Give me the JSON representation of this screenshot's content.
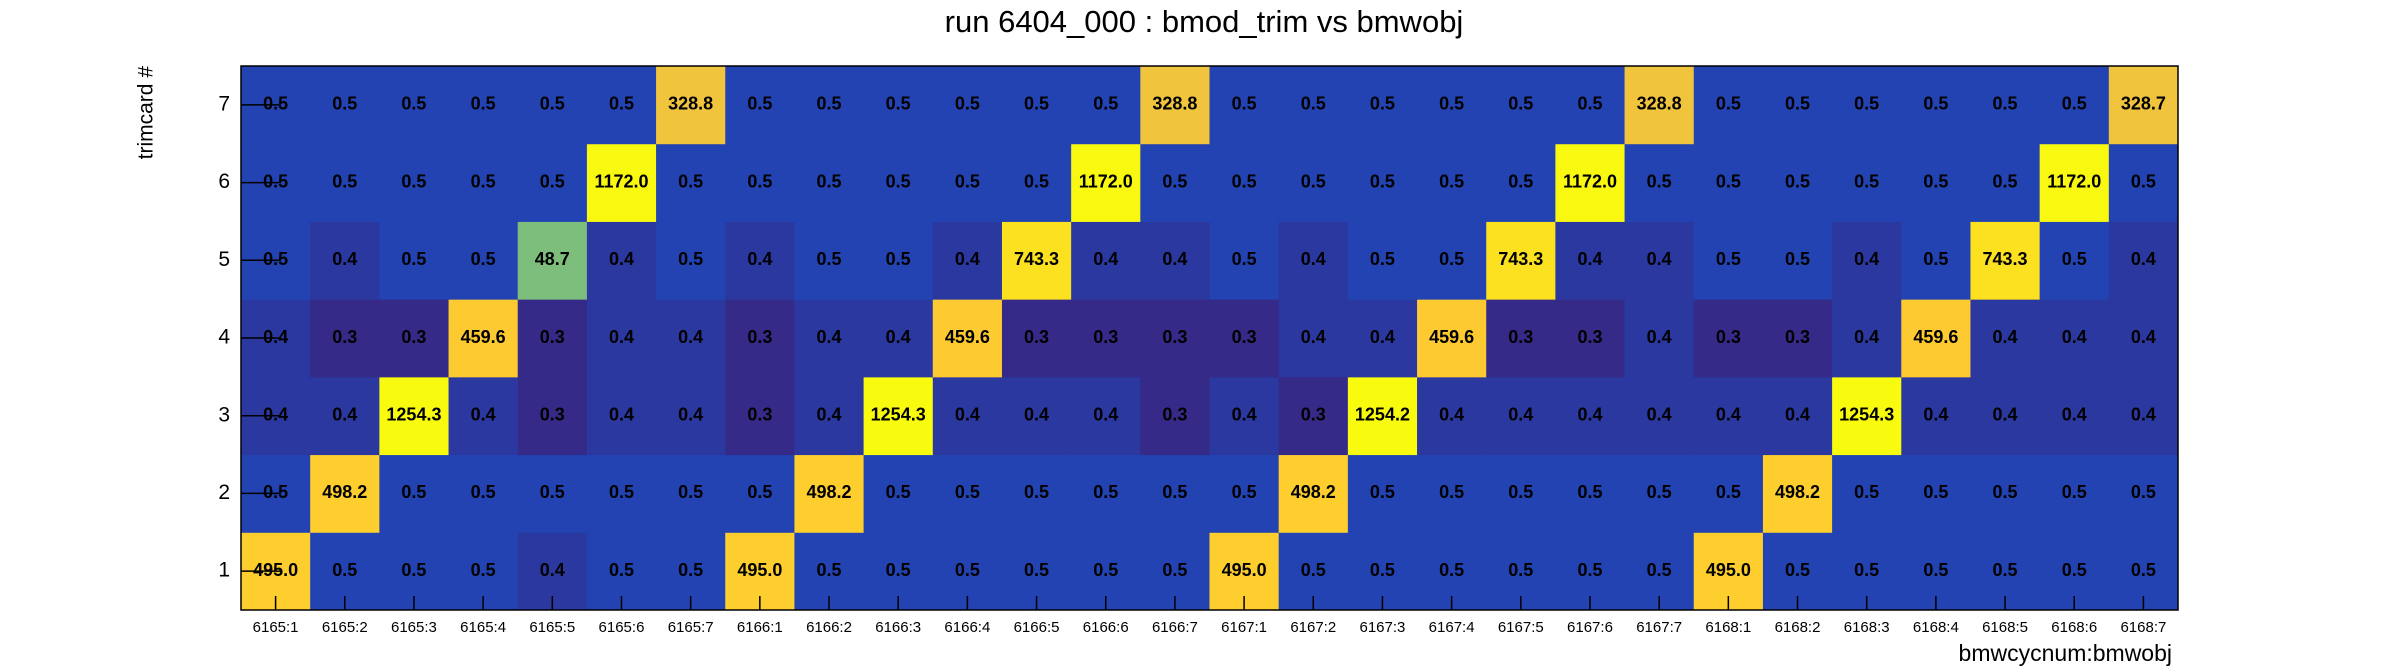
{
  "chart_data": {
    "type": "heatmap",
    "title": "run 6404_000 : bmod_trim vs bmwobj",
    "x_label": "bmwcycnum:bmwobj",
    "y_label": "trimcard #",
    "z_scale": "log",
    "palette": [
      "#352a87",
      "#0f5cdd",
      "#1481d6",
      "#06a4ca",
      "#2eb7a4",
      "#87bf77",
      "#d1bb59",
      "#fec832",
      "#f9fb0e"
    ],
    "x_categories": [
      "6165:1",
      "6165:2",
      "6165:3",
      "6165:4",
      "6165:5",
      "6165:6",
      "6165:7",
      "6166:1",
      "6166:2",
      "6166:3",
      "6166:4",
      "6166:5",
      "6166:6",
      "6166:7",
      "6167:1",
      "6167:2",
      "6167:3",
      "6167:4",
      "6167:5",
      "6167:6",
      "6167:7",
      "6168:1",
      "6168:2",
      "6168:3",
      "6168:4",
      "6168:5",
      "6168:6",
      "6168:7"
    ],
    "y_categories": [
      1,
      2,
      3,
      4,
      5,
      6,
      7
    ],
    "z": [
      [
        495.0,
        0.5,
        0.5,
        0.5,
        0.4,
        0.5,
        0.5,
        495.0,
        0.5,
        0.5,
        0.5,
        0.5,
        0.5,
        0.5,
        495.0,
        0.5,
        0.5,
        0.5,
        0.5,
        0.5,
        0.5,
        495.0,
        0.5,
        0.5,
        0.5,
        0.5,
        0.5,
        0.5
      ],
      [
        0.5,
        498.2,
        0.5,
        0.5,
        0.5,
        0.5,
        0.5,
        0.5,
        498.2,
        0.5,
        0.5,
        0.5,
        0.5,
        0.5,
        0.5,
        498.2,
        0.5,
        0.5,
        0.5,
        0.5,
        0.5,
        0.5,
        498.2,
        0.5,
        0.5,
        0.5,
        0.5,
        0.5
      ],
      [
        0.4,
        0.4,
        1254.3,
        0.4,
        0.3,
        0.4,
        0.4,
        0.3,
        0.4,
        1254.3,
        0.4,
        0.4,
        0.4,
        0.3,
        0.4,
        0.3,
        1254.2,
        0.4,
        0.4,
        0.4,
        0.4,
        0.4,
        0.4,
        1254.3,
        0.4,
        0.4,
        0.4,
        0.4
      ],
      [
        0.4,
        0.3,
        0.3,
        459.6,
        0.3,
        0.4,
        0.4,
        0.3,
        0.4,
        0.4,
        459.6,
        0.3,
        0.3,
        0.3,
        0.3,
        0.4,
        0.4,
        459.6,
        0.3,
        0.3,
        0.4,
        0.3,
        0.3,
        0.4,
        459.6,
        0.4,
        0.4,
        0.4
      ],
      [
        0.5,
        0.4,
        0.5,
        0.5,
        48.7,
        0.4,
        0.5,
        0.4,
        0.5,
        0.5,
        0.4,
        743.3,
        0.4,
        0.4,
        0.5,
        0.4,
        0.5,
        0.5,
        743.3,
        0.4,
        0.4,
        0.5,
        0.5,
        0.4,
        0.5,
        743.3,
        0.5,
        0.4
      ],
      [
        0.5,
        0.5,
        0.5,
        0.5,
        0.5,
        1172.0,
        0.5,
        0.5,
        0.5,
        0.5,
        0.5,
        0.5,
        1172.0,
        0.5,
        0.5,
        0.5,
        0.5,
        0.5,
        0.5,
        1172.0,
        0.5,
        0.5,
        0.5,
        0.5,
        0.5,
        0.5,
        1172.0,
        0.5
      ],
      [
        0.5,
        0.5,
        0.5,
        0.5,
        0.5,
        0.5,
        328.8,
        0.5,
        0.5,
        0.5,
        0.5,
        0.5,
        0.5,
        328.8,
        0.5,
        0.5,
        0.5,
        0.5,
        0.5,
        0.5,
        328.8,
        0.5,
        0.5,
        0.5,
        0.5,
        0.5,
        0.5,
        328.7
      ]
    ],
    "value_labels": [
      [
        "495.0",
        "0.5",
        "0.5",
        "0.5",
        "0.4",
        "0.5",
        "0.5",
        "495.0",
        "0.5",
        "0.5",
        "0.5",
        "0.5",
        "0.5",
        "0.5",
        "495.0",
        "0.5",
        "0.5",
        "0.5",
        "0.5",
        "0.5",
        "0.5",
        "495.0",
        "0.5",
        "0.5",
        "0.5",
        "0.5",
        "0.5",
        "0.5"
      ],
      [
        "0.5",
        "498.2",
        "0.5",
        "0.5",
        "0.5",
        "0.5",
        "0.5",
        "0.5",
        "498.2",
        "0.5",
        "0.5",
        "0.5",
        "0.5",
        "0.5",
        "0.5",
        "498.2",
        "0.5",
        "0.5",
        "0.5",
        "0.5",
        "0.5",
        "0.5",
        "498.2",
        "0.5",
        "0.5",
        "0.5",
        "0.5",
        "0.5"
      ],
      [
        "0.4",
        "0.4",
        "1254.3",
        "0.4",
        "0.3",
        "0.4",
        "0.4",
        "0.3",
        "0.4",
        "1254.3",
        "0.4",
        "0.4",
        "0.4",
        "0.3",
        "0.4",
        "0.3",
        "1254.2",
        "0.4",
        "0.4",
        "0.4",
        "0.4",
        "0.4",
        "0.4",
        "1254.3",
        "0.4",
        "0.4",
        "0.4",
        "0.4"
      ],
      [
        "0.4",
        "0.3",
        "0.3",
        "459.6",
        "0.3",
        "0.4",
        "0.4",
        "0.3",
        "0.4",
        "0.4",
        "459.6",
        "0.3",
        "0.3",
        "0.3",
        "0.3",
        "0.4",
        "0.4",
        "459.6",
        "0.3",
        "0.3",
        "0.4",
        "0.3",
        "0.3",
        "0.4",
        "459.6",
        "0.4",
        "0.4",
        "0.4"
      ],
      [
        "0.5",
        "0.4",
        "0.5",
        "0.5",
        "48.7",
        "0.4",
        "0.5",
        "0.4",
        "0.5",
        "0.5",
        "0.4",
        "743.3",
        "0.4",
        "0.4",
        "0.5",
        "0.4",
        "0.5",
        "0.5",
        "743.3",
        "0.4",
        "0.4",
        "0.5",
        "0.5",
        "0.4",
        "0.5",
        "743.3",
        "0.5",
        "0.4"
      ],
      [
        "0.5",
        "0.5",
        "0.5",
        "0.5",
        "0.5",
        "1172.0",
        "0.5",
        "0.5",
        "0.5",
        "0.5",
        "0.5",
        "0.5",
        "1172.0",
        "0.5",
        "0.5",
        "0.5",
        "0.5",
        "0.5",
        "0.5",
        "1172.0",
        "0.5",
        "0.5",
        "0.5",
        "0.5",
        "0.5",
        "0.5",
        "1172.0",
        "0.5"
      ],
      [
        "0.5",
        "0.5",
        "0.5",
        "0.5",
        "0.5",
        "0.5",
        "328.8",
        "0.5",
        "0.5",
        "0.5",
        "0.5",
        "0.5",
        "0.5",
        "328.8",
        "0.5",
        "0.5",
        "0.5",
        "0.5",
        "0.5",
        "0.5",
        "328.8",
        "0.5",
        "0.5",
        "0.5",
        "0.5",
        "0.5",
        "0.5",
        "328.7"
      ]
    ]
  }
}
